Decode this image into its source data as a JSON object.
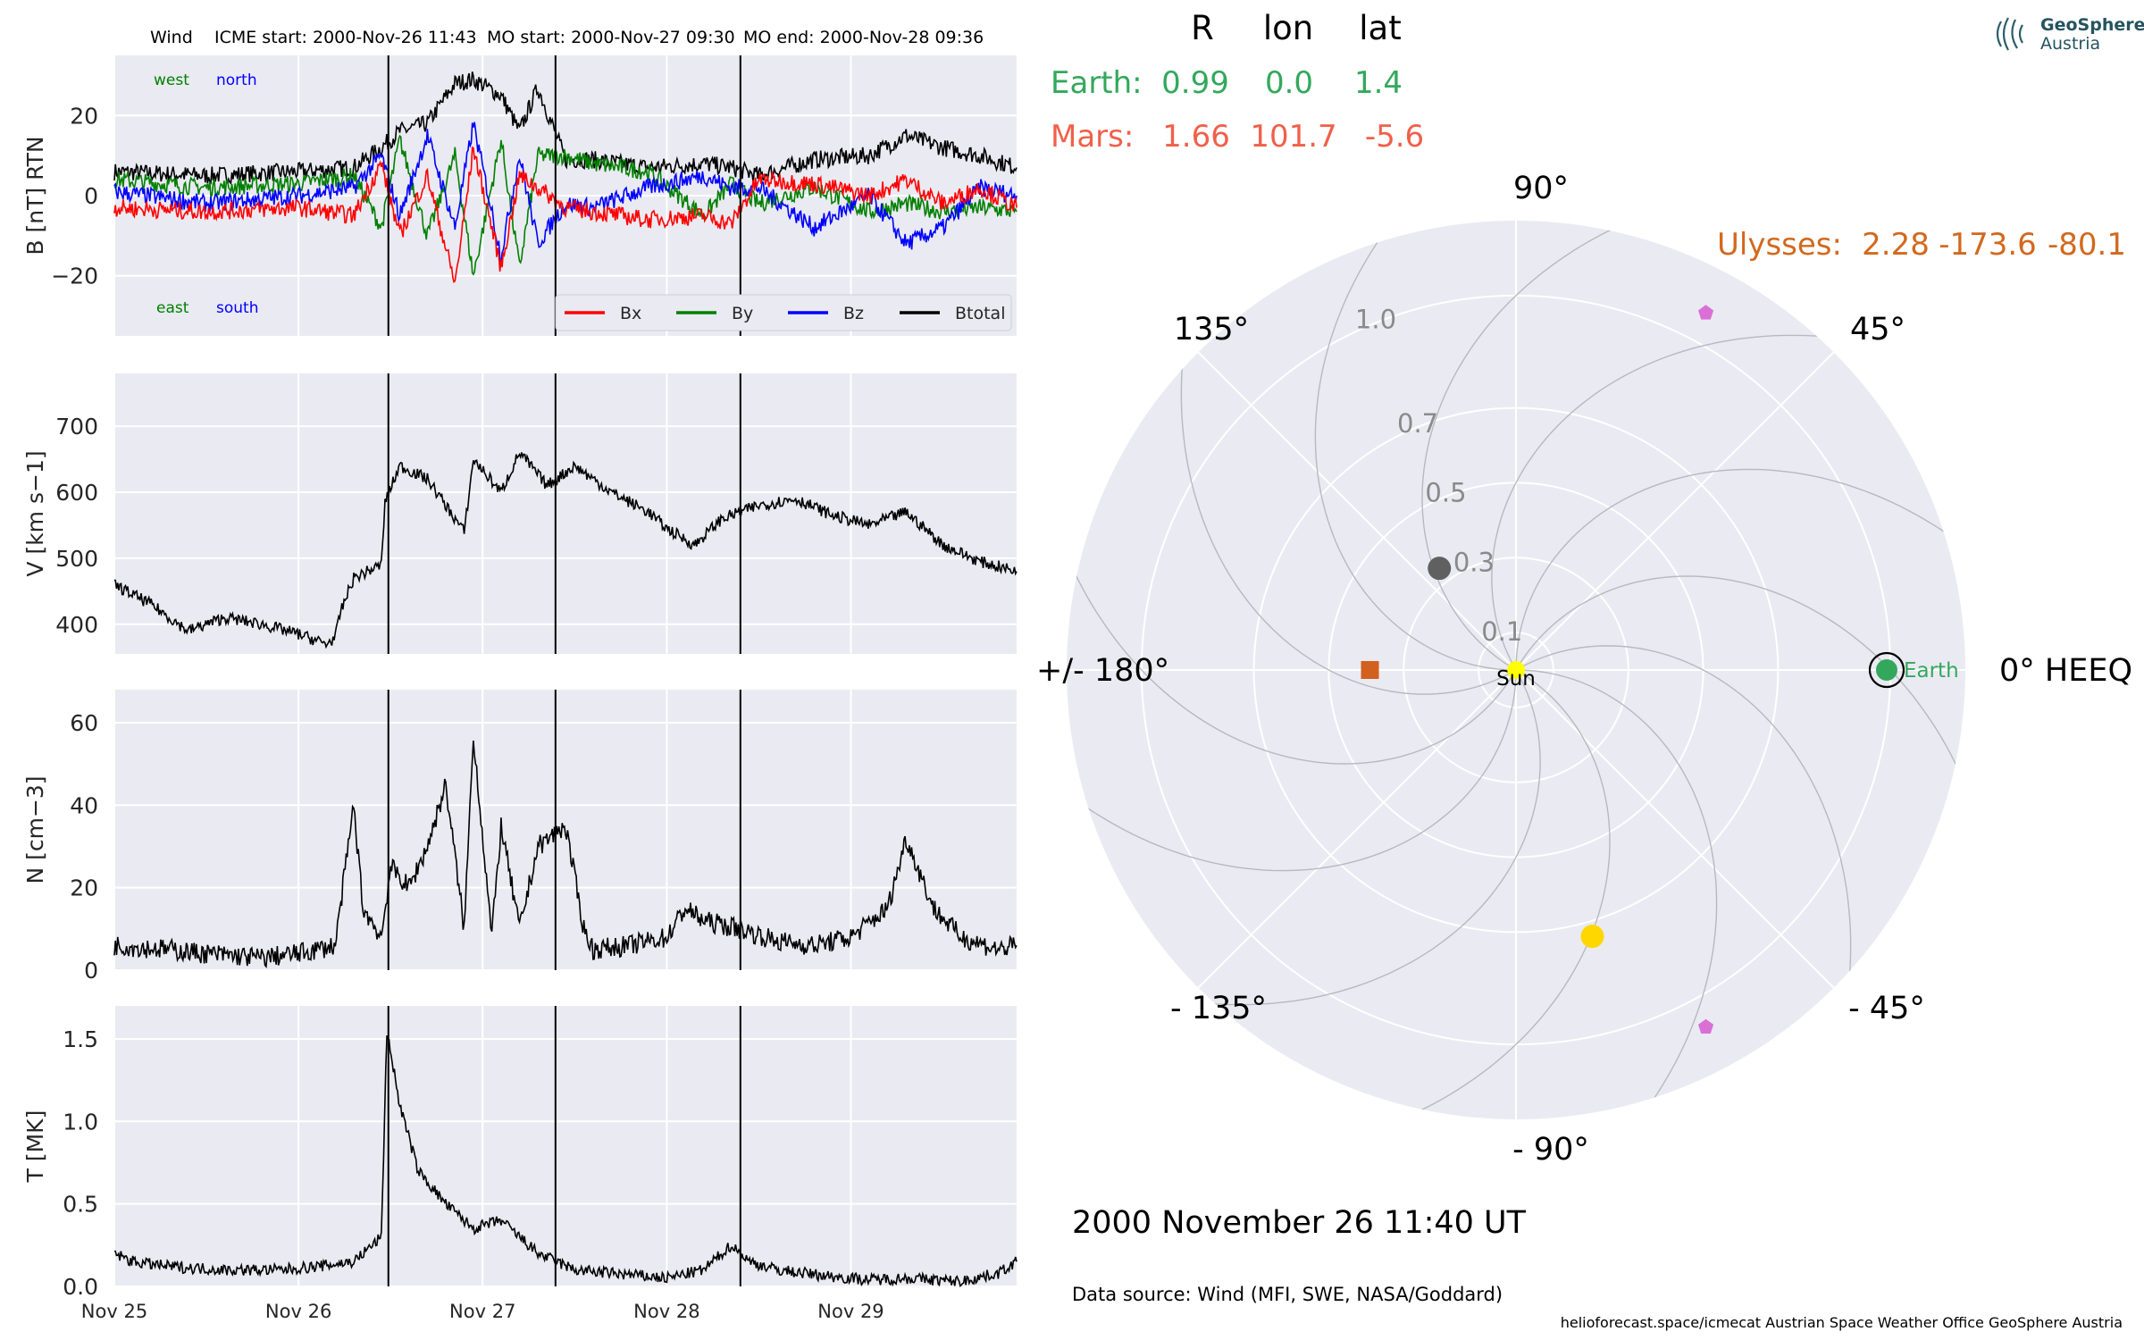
{
  "header": {
    "spacecraft": "Wind",
    "icme_start": "ICME start: 2000-Nov-26 11:43",
    "mo_start": "MO start: 2000-Nov-27 09:30",
    "mo_end": "MO end: 2000-Nov-28 09:36"
  },
  "logo": {
    "line1": "GeoSphere",
    "line2": "Austria"
  },
  "planet_table": {
    "headers": [
      "R",
      "lon",
      "lat"
    ],
    "rows": [
      {
        "name": "Earth:",
        "R": "0.99",
        "lon": "0.0",
        "lat": "1.4",
        "color": "#33a85c"
      },
      {
        "name": "Mars:",
        "R": "1.66",
        "lon": "101.7",
        "lat": "-5.6",
        "color": "#f0604a"
      }
    ],
    "ulysses": {
      "name": "Ulysses:",
      "R": "2.28",
      "lon": "-173.6",
      "lat": "-80.1",
      "color": "#d2691e"
    }
  },
  "date_text": "2000 November 26  11:40 UT",
  "data_source": "Data source: Wind (MFI, SWE, NASA/Goddard)",
  "footer": "helioforecast.space/icmecat   Austrian Space Weather Office   GeoSphere Austria",
  "colors": {
    "panel_bg": "#eaeaf2",
    "bx": "#ff0000",
    "by": "#008000",
    "bz": "#0000ff",
    "btotal": "#000000"
  },
  "chart_data": [
    {
      "type": "line",
      "name": "magnetic field",
      "ylabel": "B [nT] RTN",
      "ylim": [
        -35,
        35
      ],
      "yticks": [
        -20,
        0,
        20
      ],
      "x_unit": "days since 2000-Nov-25 00:00",
      "xlim": [
        0,
        4.9
      ],
      "xtick_labels": [
        "Nov 25",
        "Nov 26",
        "Nov 27",
        "Nov 28",
        "Nov 29"
      ],
      "event_lines": [
        "2000-Nov-26 11:43",
        "2000-Nov-27 09:30",
        "2000-Nov-28 09:36"
      ],
      "corner_labels": {
        "west": "west",
        "north": "north",
        "east": "east",
        "south": "south"
      },
      "legend": {
        "placement": "bottom-right",
        "entries": [
          "Bx",
          "By",
          "Bz",
          "Btotal"
        ]
      },
      "series": [
        {
          "name": "Btotal",
          "x": [
            0,
            0.5,
            1.0,
            1.3,
            1.45,
            1.55,
            1.7,
            1.85,
            1.95,
            2.1,
            2.2,
            2.3,
            2.45,
            2.6,
            2.9,
            3.2,
            3.35,
            3.5,
            3.8,
            4.1,
            4.3,
            4.5,
            4.7,
            4.9
          ],
          "y": [
            6,
            5,
            6,
            7,
            12,
            16,
            18,
            28,
            29,
            25,
            16,
            27,
            9,
            9,
            7,
            8,
            7,
            5,
            9,
            10,
            15,
            12,
            10,
            7
          ]
        },
        {
          "name": "Bx",
          "x": [
            0,
            0.5,
            1.0,
            1.3,
            1.45,
            1.55,
            1.7,
            1.85,
            1.95,
            2.1,
            2.2,
            2.3,
            2.45,
            2.6,
            2.9,
            3.2,
            3.35,
            3.5,
            3.8,
            4.1,
            4.3,
            4.5,
            4.7,
            4.9
          ],
          "y": [
            -3,
            -4,
            -3,
            -5,
            8,
            -10,
            5,
            -22,
            12,
            -18,
            5,
            2,
            -3,
            -4,
            -6,
            -5,
            -7,
            4,
            3,
            0,
            4,
            -2,
            2,
            -3
          ]
        },
        {
          "name": "By",
          "x": [
            0,
            0.5,
            1.0,
            1.3,
            1.45,
            1.55,
            1.7,
            1.85,
            1.95,
            2.1,
            2.2,
            2.3,
            2.45,
            2.6,
            2.9,
            3.2,
            3.35,
            3.5,
            3.8,
            4.1,
            4.3,
            4.5,
            4.7,
            4.9
          ],
          "y": [
            4,
            2,
            3,
            5,
            -8,
            14,
            -10,
            10,
            -20,
            14,
            -18,
            10,
            10,
            8,
            6,
            -5,
            3,
            -2,
            2,
            -4,
            -2,
            -4,
            -3,
            -4
          ]
        },
        {
          "name": "Bz",
          "x": [
            0,
            0.5,
            1.0,
            1.3,
            1.45,
            1.55,
            1.7,
            1.85,
            1.95,
            2.1,
            2.2,
            2.3,
            2.45,
            2.6,
            2.9,
            3.2,
            3.35,
            3.5,
            3.8,
            4.1,
            4.3,
            4.5,
            4.7,
            4.9
          ],
          "y": [
            1,
            -2,
            0,
            2,
            10,
            -5,
            15,
            -8,
            18,
            -15,
            10,
            -12,
            -2,
            -3,
            2,
            5,
            2,
            2,
            -8,
            0,
            -12,
            -8,
            2,
            0
          ]
        }
      ]
    },
    {
      "type": "line",
      "name": "speed",
      "ylabel": "V [km s−1]",
      "ylim": [
        355,
        780
      ],
      "yticks": [
        400,
        500,
        600,
        700
      ],
      "xlim": [
        0,
        4.9
      ],
      "series": [
        {
          "name": "V",
          "x": [
            0,
            0.2,
            0.4,
            0.6,
            0.8,
            1.0,
            1.15,
            1.2,
            1.23,
            1.3,
            1.45,
            1.47,
            1.55,
            1.7,
            1.9,
            1.95,
            2.1,
            2.2,
            2.35,
            2.5,
            2.7,
            2.9,
            3.0,
            3.15,
            3.3,
            3.5,
            3.7,
            3.9,
            4.1,
            4.3,
            4.5,
            4.7,
            4.9
          ],
          "y": [
            460,
            430,
            390,
            410,
            400,
            385,
            370,
            380,
            420,
            470,
            490,
            585,
            640,
            620,
            540,
            650,
            600,
            660,
            610,
            640,
            600,
            570,
            545,
            520,
            560,
            580,
            590,
            565,
            550,
            570,
            520,
            495,
            480
          ]
        }
      ]
    },
    {
      "type": "line",
      "name": "density",
      "ylabel": "N [cm−3]",
      "ylim": [
        0,
        68
      ],
      "yticks": [
        0,
        20,
        40,
        60
      ],
      "xlim": [
        0,
        4.9
      ],
      "series": [
        {
          "name": "N",
          "x": [
            0,
            0.3,
            0.5,
            0.8,
            1.0,
            1.2,
            1.3,
            1.35,
            1.45,
            1.5,
            1.6,
            1.7,
            1.8,
            1.9,
            1.95,
            2.05,
            2.1,
            2.2,
            2.3,
            2.45,
            2.55,
            2.6,
            2.8,
            3.0,
            3.1,
            3.2,
            3.4,
            3.6,
            3.8,
            4.0,
            4.2,
            4.3,
            4.45,
            4.6,
            4.8,
            4.9
          ],
          "y": [
            6,
            5,
            4,
            3,
            4,
            6,
            40,
            15,
            8,
            25,
            20,
            30,
            45,
            10,
            57,
            8,
            35,
            10,
            30,
            35,
            10,
            5,
            6,
            8,
            15,
            12,
            10,
            7,
            6,
            8,
            15,
            32,
            15,
            8,
            5,
            6
          ]
        }
      ]
    },
    {
      "type": "line",
      "name": "temperature",
      "ylabel": "T [MK]",
      "ylim": [
        0,
        1.7
      ],
      "yticks": [
        0.0,
        0.5,
        1.0,
        1.5
      ],
      "xlim": [
        0,
        4.9
      ],
      "series": [
        {
          "name": "T",
          "x": [
            0,
            0.1,
            0.3,
            0.6,
            0.9,
            1.1,
            1.3,
            1.45,
            1.48,
            1.55,
            1.65,
            1.8,
            1.95,
            2.1,
            2.3,
            2.5,
            2.7,
            3.0,
            3.2,
            3.35,
            3.45,
            3.6,
            3.9,
            4.1,
            4.3,
            4.6,
            4.8,
            4.9
          ],
          "y": [
            0.2,
            0.15,
            0.12,
            0.1,
            0.1,
            0.12,
            0.15,
            0.3,
            1.55,
            1.1,
            0.7,
            0.5,
            0.35,
            0.4,
            0.2,
            0.1,
            0.08,
            0.05,
            0.1,
            0.25,
            0.15,
            0.1,
            0.06,
            0.04,
            0.05,
            0.03,
            0.08,
            0.15
          ]
        }
      ]
    },
    {
      "type": "scatter",
      "name": "polar position plot",
      "coordinates": "polar, HEEQ longitude in degrees, radius in AU",
      "angle_labels": [
        {
          "deg": 0,
          "label": "0° HEEQ"
        },
        {
          "deg": 45,
          "label": "45°"
        },
        {
          "deg": 90,
          "label": "90°"
        },
        {
          "deg": 135,
          "label": "135°"
        },
        {
          "deg": 180,
          "label": "+/- 180°"
        },
        {
          "deg": -135,
          "label": "- 135°"
        },
        {
          "deg": -90,
          "label": "- 90°"
        },
        {
          "deg": -45,
          "label": "- 45°"
        }
      ],
      "radial_ticks": [
        "0.1",
        "0.3",
        "0.5",
        "0.7",
        "1.0"
      ],
      "radial_tick_values": [
        0.1,
        0.3,
        0.5,
        0.7,
        1.0
      ],
      "rlim": [
        0,
        1.2
      ],
      "points": [
        {
          "name": "Sun",
          "label": "Sun",
          "lon": 0,
          "r": 0,
          "color": "#ffff00",
          "marker": "circle"
        },
        {
          "name": "Earth",
          "label": "Earth",
          "lon": 0,
          "r": 0.99,
          "color": "#33a85c",
          "marker": "circle-ringed"
        },
        {
          "name": "gray",
          "lon": 127,
          "r": 0.34,
          "color": "#606060",
          "marker": "circle"
        },
        {
          "name": "yellow",
          "lon": -74,
          "r": 0.74,
          "color": "#ffd700",
          "marker": "circle"
        },
        {
          "name": "orange",
          "lon": 180,
          "r": 0.39,
          "color": "#d2601e",
          "marker": "square"
        },
        {
          "name": "pink-top",
          "lon": 62,
          "r": 1.08,
          "color": "#da70d6",
          "marker": "pentagon"
        },
        {
          "name": "pink-bottom",
          "lon": -62,
          "r": 1.08,
          "color": "#da70d6",
          "marker": "pentagon"
        }
      ]
    }
  ]
}
